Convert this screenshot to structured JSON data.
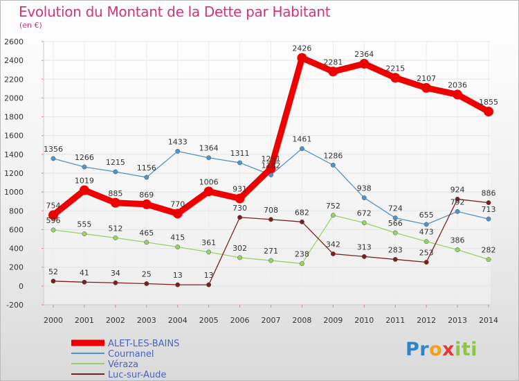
{
  "title": "Evolution du Montant de la Dette par Habitant",
  "subtitle": "(en €)",
  "logo": {
    "text": "Proxiti"
  },
  "chart_data": {
    "type": "line",
    "x": [
      "2000",
      "2001",
      "2002",
      "2003",
      "2004",
      "2005",
      "2006",
      "2007",
      "2008",
      "2009",
      "2010",
      "2011",
      "2012",
      "2013",
      "2014"
    ],
    "yticks": [
      -200,
      0,
      200,
      400,
      600,
      800,
      1000,
      1200,
      1400,
      1600,
      1800,
      2000,
      2200,
      2400,
      2600
    ],
    "ylim": [
      -200,
      2600
    ],
    "grid": true,
    "legend_position": "bottom-left",
    "series": [
      {
        "name": "ALET-LES-BAINS",
        "color": "#ee0000",
        "bold": true,
        "values": [
          754,
          1019,
          885,
          869,
          770,
          1006,
          931,
          1251,
          2426,
          2281,
          2364,
          2215,
          2107,
          2036,
          1855
        ]
      },
      {
        "name": "Cournanel",
        "color": "#4f93c9",
        "bold": false,
        "values": [
          1356,
          1266,
          1215,
          1156,
          1433,
          1364,
          1311,
          1182,
          1461,
          1286,
          938,
          724,
          655,
          792,
          713
        ]
      },
      {
        "name": "Véraza",
        "color": "#96d265",
        "bold": false,
        "values": [
          596,
          555,
          512,
          465,
          415,
          361,
          302,
          271,
          238,
          752,
          672,
          566,
          473,
          386,
          282
        ]
      },
      {
        "name": "Luc-sur-Aude",
        "color": "#7a1f1f",
        "bold": false,
        "values": [
          52,
          41,
          34,
          25,
          13,
          13,
          730,
          708,
          682,
          342,
          313,
          283,
          253,
          924,
          886
        ]
      }
    ]
  }
}
